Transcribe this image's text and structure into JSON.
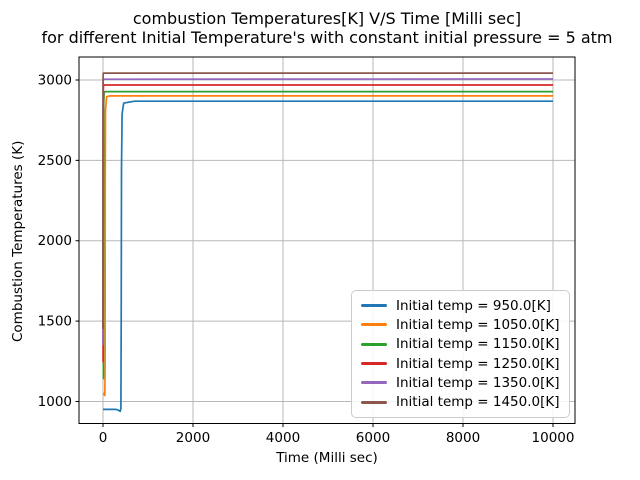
{
  "chart_data": {
    "type": "line",
    "title": "combustion Temperatures[K] V/S Time [Milli sec]",
    "subtitle": "for different Initial Temperature's with constant initial pressure = 5 atm",
    "xlabel": "Time (Milli sec)",
    "ylabel": "Combustion Temperatures (K)",
    "xlim": [
      -533,
      10489
    ],
    "ylim": [
      863,
      3143
    ],
    "xticks": [
      0,
      2000,
      4000,
      6000,
      8000,
      10000
    ],
    "yticks": [
      1000,
      1500,
      2000,
      2500,
      3000
    ],
    "grid": true,
    "grid_color": "#b8b8b8",
    "axis_color": "#000000",
    "legend_position": "lower right",
    "series": [
      {
        "name": "Initial temp = 950.0[K]",
        "color": "#1f77b4",
        "initial_temp_K": 950.0,
        "plateau_temp_K": 2868,
        "ignition_time_ms": 400,
        "points": [
          [
            0,
            951
          ],
          [
            290,
            951
          ],
          [
            350,
            945
          ],
          [
            382,
            938
          ],
          [
            398,
            955
          ],
          [
            405,
            1500
          ],
          [
            412,
            2450
          ],
          [
            425,
            2790
          ],
          [
            460,
            2856
          ],
          [
            700,
            2868
          ],
          [
            10000,
            2868
          ]
        ]
      },
      {
        "name": "Initial temp = 1050.0[K]",
        "color": "#ff7f0e",
        "initial_temp_K": 1050.0,
        "plateau_temp_K": 2901,
        "ignition_time_ms": 45,
        "points": [
          [
            0,
            1050
          ],
          [
            18,
            1049
          ],
          [
            30,
            1040
          ],
          [
            40,
            1037
          ],
          [
            46,
            1200
          ],
          [
            50,
            2300
          ],
          [
            56,
            2810
          ],
          [
            80,
            2896
          ],
          [
            150,
            2901
          ],
          [
            10000,
            2901
          ]
        ]
      },
      {
        "name": "Initial temp = 1150.0[K]",
        "color": "#2ca02c",
        "initial_temp_K": 1150.0,
        "plateau_temp_K": 2928,
        "ignition_time_ms": 11,
        "points": [
          [
            0,
            1150
          ],
          [
            6,
            1148
          ],
          [
            9,
            1143
          ],
          [
            12,
            1700
          ],
          [
            15,
            2850
          ],
          [
            25,
            2924
          ],
          [
            60,
            2928
          ],
          [
            10000,
            2928
          ]
        ]
      },
      {
        "name": "Initial temp = 1250.0[K]",
        "color": "#d62728",
        "initial_temp_K": 1250.0,
        "plateau_temp_K": 2969,
        "ignition_time_ms": 4,
        "points": [
          [
            0,
            1250
          ],
          [
            2,
            1249
          ],
          [
            3.5,
            1400
          ],
          [
            5,
            2700
          ],
          [
            9,
            2960
          ],
          [
            25,
            2969
          ],
          [
            10000,
            2969
          ]
        ]
      },
      {
        "name": "Initial temp = 1350.0[K]",
        "color": "#9467bd",
        "initial_temp_K": 1350.0,
        "plateau_temp_K": 3006,
        "ignition_time_ms": 1.5,
        "points": [
          [
            0,
            1350
          ],
          [
            1,
            1352
          ],
          [
            1.6,
            2400
          ],
          [
            3,
            2980
          ],
          [
            8,
            3005
          ],
          [
            10000,
            3006
          ]
        ]
      },
      {
        "name": "Initial temp = 1450.0[K]",
        "color": "#8c564b",
        "initial_temp_K": 1450.0,
        "plateau_temp_K": 3043,
        "ignition_time_ms": 0.6,
        "points": [
          [
            0,
            1450
          ],
          [
            0.5,
            1460
          ],
          [
            0.9,
            2700
          ],
          [
            2,
            3030
          ],
          [
            6,
            3043
          ],
          [
            10000,
            3043
          ]
        ]
      }
    ]
  }
}
